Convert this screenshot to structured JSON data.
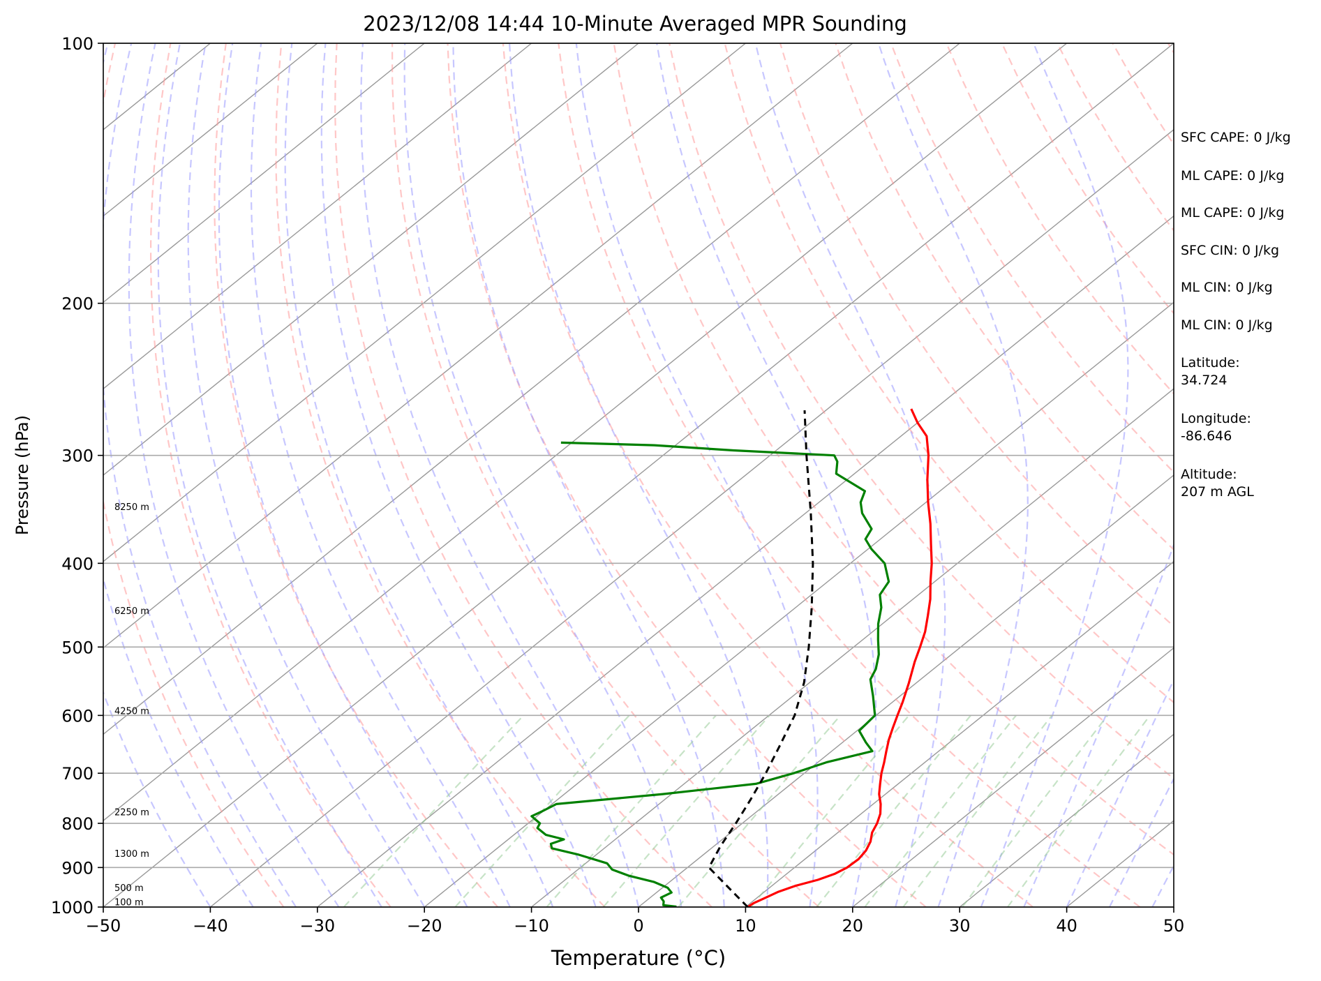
{
  "title": "2023/12/08 14:44 10-Minute Averaged MPR Sounding",
  "colors": {
    "temperature": "#ff0000",
    "dewpoint": "#008000",
    "parcel": "#000000",
    "dry_adiabats": "#ff9999",
    "moist_adiabats": "#9999ff",
    "mixing_ratio": "#99cc99",
    "isotherms": "#999999"
  },
  "chart_data": {
    "type": "skew-t",
    "title": "2023/12/08 14:44 10-Minute Averaged MPR Sounding",
    "xlabel": "Temperature (°C)",
    "ylabel": "Pressure (hPa)",
    "xlim": [
      -50,
      50
    ],
    "ylim": [
      1000,
      100
    ],
    "y_scale": "log",
    "x_ticks": [
      -50,
      -40,
      -30,
      -20,
      -10,
      0,
      10,
      20,
      30,
      40,
      50
    ],
    "x_tick_labels": [
      "−50",
      "−40",
      "−30",
      "−20",
      "−10",
      "0",
      "10",
      "20",
      "30",
      "40",
      "50"
    ],
    "y_ticks": [
      1000,
      900,
      800,
      700,
      600,
      500,
      400,
      300,
      200,
      100
    ],
    "y_tick_labels": [
      "1000",
      "900",
      "800",
      "700",
      "600",
      "500",
      "400",
      "300",
      "200",
      "100"
    ],
    "grid": "horizontal at pressure ticks",
    "height_labels": [
      {
        "text": "8250 m",
        "pressure": 347
      },
      {
        "text": "6250 m",
        "pressure": 458
      },
      {
        "text": "4250 m",
        "pressure": 598
      },
      {
        "text": "2250 m",
        "pressure": 783
      },
      {
        "text": "1300 m",
        "pressure": 875
      },
      {
        "text": "500 m",
        "pressure": 958
      },
      {
        "text": "100 m",
        "pressure": 995
      }
    ],
    "series": [
      {
        "name": "temperature",
        "points": [
          {
            "p": 1000,
            "t": 10.2
          },
          {
            "p": 990,
            "t": 10.3
          },
          {
            "p": 975,
            "t": 10.8
          },
          {
            "p": 960,
            "t": 11.3
          },
          {
            "p": 945,
            "t": 12.2
          },
          {
            "p": 930,
            "t": 13.6
          },
          {
            "p": 915,
            "t": 14.5
          },
          {
            "p": 900,
            "t": 14.9
          },
          {
            "p": 880,
            "t": 15.0
          },
          {
            "p": 860,
            "t": 14.7
          },
          {
            "p": 840,
            "t": 14.1
          },
          {
            "p": 820,
            "t": 13.2
          },
          {
            "p": 800,
            "t": 12.6
          },
          {
            "p": 780,
            "t": 11.8
          },
          {
            "p": 760,
            "t": 10.7
          },
          {
            "p": 740,
            "t": 9.4
          },
          {
            "p": 720,
            "t": 8.3
          },
          {
            "p": 700,
            "t": 7.2
          },
          {
            "p": 680,
            "t": 6.2
          },
          {
            "p": 660,
            "t": 5.1
          },
          {
            "p": 640,
            "t": 4.0
          },
          {
            "p": 620,
            "t": 3.0
          },
          {
            "p": 600,
            "t": 2.0
          },
          {
            "p": 580,
            "t": 1.0
          },
          {
            "p": 550,
            "t": -0.7
          },
          {
            "p": 520,
            "t": -2.6
          },
          {
            "p": 500,
            "t": -3.8
          },
          {
            "p": 480,
            "t": -5.1
          },
          {
            "p": 460,
            "t": -6.7
          },
          {
            "p": 440,
            "t": -8.4
          },
          {
            "p": 420,
            "t": -10.4
          },
          {
            "p": 400,
            "t": -12.4
          },
          {
            "p": 380,
            "t": -14.7
          },
          {
            "p": 360,
            "t": -17.1
          },
          {
            "p": 340,
            "t": -19.8
          },
          {
            "p": 320,
            "t": -22.5
          },
          {
            "p": 300,
            "t": -25.2
          },
          {
            "p": 285,
            "t": -27.6
          },
          {
            "p": 275,
            "t": -30.0
          },
          {
            "p": 265,
            "t": -32.2
          }
        ]
      },
      {
        "name": "dewpoint",
        "points": [
          {
            "p": 999,
            "t": 3.5
          },
          {
            "p": 995,
            "t": 2.1
          },
          {
            "p": 985,
            "t": 1.7
          },
          {
            "p": 975,
            "t": 1.0
          },
          {
            "p": 962,
            "t": 1.4
          },
          {
            "p": 950,
            "t": 0.5
          },
          {
            "p": 935,
            "t": -1.5
          },
          {
            "p": 920,
            "t": -4.5
          },
          {
            "p": 905,
            "t": -6.8
          },
          {
            "p": 890,
            "t": -8.0
          },
          {
            "p": 870,
            "t": -11.6
          },
          {
            "p": 855,
            "t": -14.9
          },
          {
            "p": 845,
            "t": -15.5
          },
          {
            "p": 835,
            "t": -14.8
          },
          {
            "p": 825,
            "t": -17.0
          },
          {
            "p": 810,
            "t": -18.6
          },
          {
            "p": 800,
            "t": -18.9
          },
          {
            "p": 785,
            "t": -20.5
          },
          {
            "p": 775,
            "t": -20.1
          },
          {
            "p": 760,
            "t": -19.6
          },
          {
            "p": 740,
            "t": -10.8
          },
          {
            "p": 720,
            "t": -3.3
          },
          {
            "p": 700,
            "t": -1.0
          },
          {
            "p": 680,
            "t": 0.8
          },
          {
            "p": 660,
            "t": 3.8
          },
          {
            "p": 645,
            "t": 2.2
          },
          {
            "p": 625,
            "t": 0.2
          },
          {
            "p": 600,
            "t": -0.1
          },
          {
            "p": 570,
            "t": -2.5
          },
          {
            "p": 545,
            "t": -4.7
          },
          {
            "p": 530,
            "t": -5.4
          },
          {
            "p": 510,
            "t": -6.8
          },
          {
            "p": 490,
            "t": -8.6
          },
          {
            "p": 470,
            "t": -10.4
          },
          {
            "p": 450,
            "t": -12.0
          },
          {
            "p": 435,
            "t": -13.6
          },
          {
            "p": 420,
            "t": -14.3
          },
          {
            "p": 400,
            "t": -16.8
          },
          {
            "p": 385,
            "t": -19.7
          },
          {
            "p": 375,
            "t": -21.4
          },
          {
            "p": 365,
            "t": -22.0
          },
          {
            "p": 350,
            "t": -24.7
          },
          {
            "p": 340,
            "t": -26.1
          },
          {
            "p": 330,
            "t": -27.0
          },
          {
            "p": 315,
            "t": -31.7
          },
          {
            "p": 305,
            "t": -33.0
          },
          {
            "p": 300,
            "t": -34.0
          },
          {
            "p": 296,
            "t": -44.0
          },
          {
            "p": 292,
            "t": -52.0
          },
          {
            "p": 290,
            "t": -61.0
          }
        ]
      },
      {
        "name": "parcel",
        "points": [
          {
            "p": 1000,
            "t": 10.2
          },
          {
            "p": 950,
            "t": 6.2
          },
          {
            "p": 900,
            "t": 2.0
          },
          {
            "p": 850,
            "t": 0.6
          },
          {
            "p": 800,
            "t": -0.6
          },
          {
            "p": 750,
            "t": -2.0
          },
          {
            "p": 700,
            "t": -3.6
          },
          {
            "p": 650,
            "t": -5.5
          },
          {
            "p": 600,
            "t": -7.6
          },
          {
            "p": 550,
            "t": -10.5
          },
          {
            "p": 500,
            "t": -14.2
          },
          {
            "p": 450,
            "t": -18.5
          },
          {
            "p": 400,
            "t": -23.5
          },
          {
            "p": 350,
            "t": -29.5
          },
          {
            "p": 300,
            "t": -36.6
          },
          {
            "p": 266,
            "t": -42.0
          }
        ]
      }
    ]
  },
  "info_panel": [
    {
      "text": "SFC CAPE: 0 J/kg"
    },
    {
      "text": "ML CAPE: 0 J/kg"
    },
    {
      "text": "ML CAPE: 0 J/kg"
    },
    {
      "text": "SFC CIN: 0 J/kg"
    },
    {
      "text": "ML CIN: 0 J/kg"
    },
    {
      "text": "ML CIN: 0 J/kg"
    },
    {
      "text": "Latitude:\n34.724"
    },
    {
      "text": "Longitude:\n-86.646"
    },
    {
      "text": "Altitude:\n207 m AGL"
    }
  ]
}
